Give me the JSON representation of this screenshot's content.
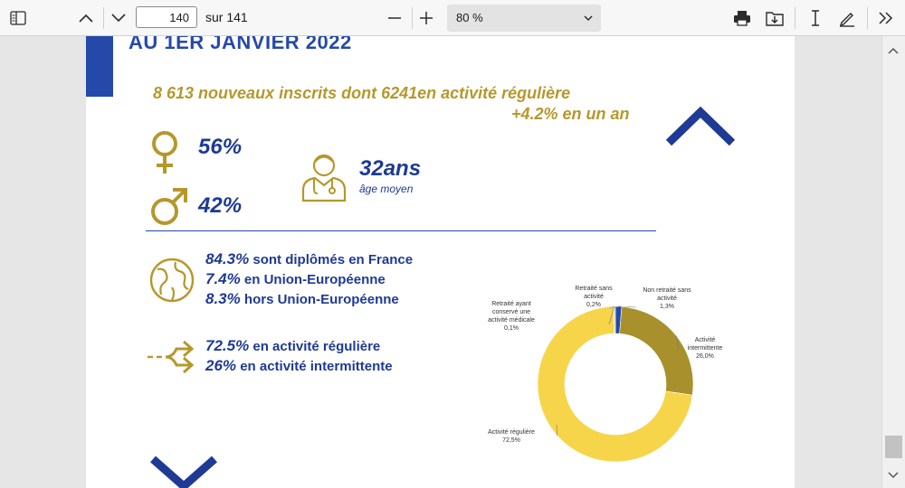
{
  "toolbar": {
    "page_current": "140",
    "page_total": "sur 141",
    "zoom": "80 %"
  },
  "document": {
    "title": "AU 1ER JANVIER 2022",
    "headline": "8 613 nouveaux inscrits dont 6241en activité régulière",
    "headline_growth": "+4.2% en un an",
    "female_pct": "56%",
    "male_pct": "42%",
    "age": "32ans",
    "age_label": "âge moyen",
    "diploma": [
      {
        "value": "84.3%",
        "text": " sont diplômés en France"
      },
      {
        "value": "7.4%",
        "text": " en Union-Européenne"
      },
      {
        "value": "8.3%",
        "text": " hors Union-Européenne"
      }
    ],
    "activity": [
      {
        "value": "72.5%",
        "text": " en activité régulière"
      },
      {
        "value": "26%",
        "text": " en activité intermittente"
      }
    ]
  },
  "chart_data": {
    "type": "pie",
    "donut": true,
    "title": "",
    "slices": [
      {
        "label_lines": [
          "Non retraité sans",
          "activité",
          "1,3%"
        ],
        "value": 1.3,
        "color": "#2549a8"
      },
      {
        "label_lines": [
          "Activité",
          "intermittente",
          "26,0%"
        ],
        "value": 26.0,
        "color": "#a8902c"
      },
      {
        "label_lines": [
          "Activité régulière",
          "72,5%"
        ],
        "value": 72.5,
        "color": "#f7d54a"
      },
      {
        "label_lines": [
          "Retraité ayant",
          "conservé une",
          "activité médicale",
          "0,1%"
        ],
        "value": 0.1,
        "color": "#8a7a3a"
      },
      {
        "label_lines": [
          "Retraité sans",
          "activité",
          "0,2%"
        ],
        "value": 0.2,
        "color": "#6b6b6b"
      }
    ]
  },
  "colors": {
    "brand_blue": "#2549a8",
    "gold": "#b5982c"
  }
}
